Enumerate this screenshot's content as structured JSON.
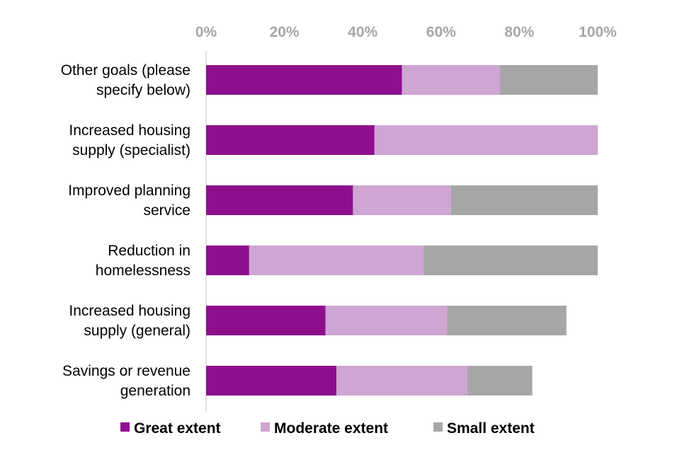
{
  "chart_data": {
    "type": "bar",
    "orientation": "horizontal",
    "stacked": true,
    "categories": [
      [
        "Other goals (please",
        "specify below)"
      ],
      [
        "Increased housing",
        "supply (specialist)"
      ],
      [
        "Improved planning",
        "service"
      ],
      [
        "Reduction in",
        "homelessness"
      ],
      [
        "Increased housing",
        "supply (general)"
      ],
      [
        "Savings or revenue",
        "generation"
      ]
    ],
    "series": [
      {
        "name": "Great extent",
        "color": "#8e0f8e",
        "values": [
          50,
          43,
          37.5,
          11,
          30.5,
          33.3
        ]
      },
      {
        "name": "Moderate extent",
        "color": "#cfa5d3",
        "values": [
          25,
          57,
          25,
          44.5,
          31,
          33.4
        ]
      },
      {
        "name": "Small extent",
        "color": "#a6a6a6",
        "values": [
          25,
          0,
          37.5,
          44.5,
          30.5,
          16.6
        ]
      }
    ],
    "xlim": [
      0,
      100
    ],
    "x_ticks": [
      "0%",
      "20%",
      "40%",
      "60%",
      "80%",
      "100%"
    ],
    "x_tick_values": [
      0,
      20,
      40,
      60,
      80,
      100
    ],
    "xaxis_position": "top",
    "grid": false,
    "legend_position": "bottom"
  }
}
